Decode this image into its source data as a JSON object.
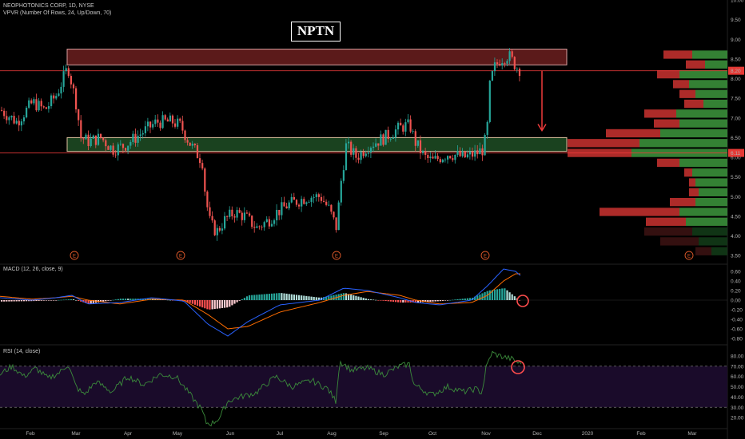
{
  "header": {
    "symbol_line": "NEOPHOTONICS CORP, 1D, NYSE",
    "vpvr_line": "VPVR (Number Of Rows, 24, Up/Down, 70)",
    "ticker": "NPTN"
  },
  "price_axis": {
    "ticks": [
      "10.00",
      "9.50",
      "9.00",
      "8.50",
      "8.00",
      "7.50",
      "7.00",
      "6.50",
      "6.00",
      "5.50",
      "5.00",
      "4.50",
      "4.00",
      "3.50"
    ],
    "current_price": "8.20",
    "support_price": "6.11"
  },
  "macd": {
    "label": "MACD (12, 26, close, 9)",
    "ticks": [
      "0.60",
      "0.40",
      "0.20",
      "0.00",
      "-0.20",
      "-0.40",
      "-0.60",
      "-0.80"
    ]
  },
  "rsi": {
    "label": "RSI (14, close)",
    "ticks": [
      "80.00",
      "70.00",
      "60.00",
      "50.00",
      "40.00",
      "30.00",
      "20.00"
    ]
  },
  "time_axis": {
    "labels": [
      "Feb",
      "Mar",
      "Apr",
      "May",
      "Jun",
      "Jul",
      "Aug",
      "Sep",
      "Oct",
      "Nov",
      "Dec",
      "2020",
      "Feb",
      "Mar"
    ]
  },
  "earnings_markers": [
    "E",
    "E",
    "E",
    "E",
    "E"
  ],
  "colors": {
    "background": "#000000",
    "up": "#26a69a",
    "down": "#ef5350",
    "resistance_zone": "#6b1e1e",
    "support_zone": "#1e4d24",
    "line_red": "#ef3b3b",
    "macd_line": "#2962ff",
    "signal_line": "#ff6d00",
    "rsi_line": "#3b8b3b",
    "rsi_band": "#1a0b2a",
    "vp_up": "#3a8f3a",
    "vp_down": "#c0302d"
  },
  "chart_data": {
    "type": "candlestick",
    "title": "NEOPHOTONICS CORP, 1D, NYSE",
    "y_range": [
      3.3,
      10.0
    ],
    "resistance_zone": [
      8.35,
      8.75
    ],
    "support_zone": [
      6.15,
      6.5
    ],
    "horizontal_lines": [
      8.2,
      6.11
    ],
    "price_path": [
      [
        0,
        7.2
      ],
      [
        20,
        6.9
      ],
      [
        40,
        7.4
      ],
      [
        55,
        7.2
      ],
      [
        70,
        7.6
      ],
      [
        84,
        8.3
      ],
      [
        95,
        7.3
      ],
      [
        100,
        6.5
      ],
      [
        110,
        6.4
      ],
      [
        125,
        6.5
      ],
      [
        140,
        6.2
      ],
      [
        155,
        6.3
      ],
      [
        175,
        6.6
      ],
      [
        195,
        6.9
      ],
      [
        215,
        6.9
      ],
      [
        225,
        6.8
      ],
      [
        235,
        6.4
      ],
      [
        245,
        6.1
      ],
      [
        252,
        5.9
      ],
      [
        256,
        5.0
      ],
      [
        262,
        4.3
      ],
      [
        270,
        4.1
      ],
      [
        280,
        4.4
      ],
      [
        292,
        4.6
      ],
      [
        305,
        4.5
      ],
      [
        320,
        4.2
      ],
      [
        335,
        4.4
      ],
      [
        345,
        4.6
      ],
      [
        360,
        4.8
      ],
      [
        385,
        5.0
      ],
      [
        400,
        5.0
      ],
      [
        410,
        4.7
      ],
      [
        420,
        4.2
      ],
      [
        425,
        5.3
      ],
      [
        432,
        6.3
      ],
      [
        445,
        6.0
      ],
      [
        460,
        6.3
      ],
      [
        480,
        6.5
      ],
      [
        495,
        6.7
      ],
      [
        505,
        6.8
      ],
      [
        512,
        6.8
      ],
      [
        518,
        6.4
      ],
      [
        530,
        6.0
      ],
      [
        540,
        5.9
      ],
      [
        560,
        6.1
      ],
      [
        580,
        6.0
      ],
      [
        595,
        6.1
      ],
      [
        603,
        6.2
      ],
      [
        608,
        6.6
      ],
      [
        612,
        7.9
      ],
      [
        618,
        8.3
      ],
      [
        625,
        8.5
      ],
      [
        635,
        8.6
      ],
      [
        645,
        8.3
      ],
      [
        652,
        8.2
      ]
    ],
    "volume_profile": [
      {
        "price": 8.6,
        "up": 0.22,
        "down": 0.18
      },
      {
        "price": 8.35,
        "up": 0.14,
        "down": 0.12
      },
      {
        "price": 8.1,
        "up": 0.3,
        "down": 0.14
      },
      {
        "price": 7.85,
        "up": 0.24,
        "down": 0.1
      },
      {
        "price": 7.6,
        "up": 0.2,
        "down": 0.1
      },
      {
        "price": 7.35,
        "up": 0.15,
        "down": 0.12
      },
      {
        "price": 7.1,
        "up": 0.32,
        "down": 0.2
      },
      {
        "price": 6.85,
        "up": 0.3,
        "down": 0.16
      },
      {
        "price": 6.6,
        "up": 0.42,
        "down": 0.34
      },
      {
        "price": 6.35,
        "up": 0.55,
        "down": 0.45
      },
      {
        "price": 6.1,
        "up": 0.6,
        "down": 0.4
      },
      {
        "price": 5.85,
        "up": 0.3,
        "down": 0.14
      },
      {
        "price": 5.6,
        "up": 0.22,
        "down": 0.05
      },
      {
        "price": 5.35,
        "up": 0.2,
        "down": 0.04
      },
      {
        "price": 5.1,
        "up": 0.18,
        "down": 0.06
      },
      {
        "price": 4.85,
        "up": 0.2,
        "down": 0.16
      },
      {
        "price": 4.6,
        "up": 0.3,
        "down": 0.5
      },
      {
        "price": 4.35,
        "up": 0.26,
        "down": 0.25
      },
      {
        "price": 4.1,
        "up": 0.22,
        "down": 0.3
      },
      {
        "price": 3.85,
        "up": 0.18,
        "down": 0.24
      },
      {
        "price": 3.6,
        "up": 0.1,
        "down": 0.1
      }
    ],
    "macd_path": [
      [
        0,
        0.05
      ],
      [
        40,
        0.0
      ],
      [
        70,
        0.05
      ],
      [
        90,
        0.1
      ],
      [
        110,
        -0.08
      ],
      [
        150,
        -0.05
      ],
      [
        190,
        0.05
      ],
      [
        230,
        -0.02
      ],
      [
        260,
        -0.5
      ],
      [
        285,
        -0.75
      ],
      [
        310,
        -0.45
      ],
      [
        350,
        -0.1
      ],
      [
        400,
        0.0
      ],
      [
        430,
        0.25
      ],
      [
        460,
        0.2
      ],
      [
        500,
        0.05
      ],
      [
        520,
        -0.05
      ],
      [
        550,
        -0.1
      ],
      [
        590,
        0.0
      ],
      [
        610,
        0.3
      ],
      [
        630,
        0.65
      ],
      [
        645,
        0.6
      ],
      [
        652,
        0.5
      ]
    ],
    "signal_path": [
      [
        0,
        0.08
      ],
      [
        40,
        0.02
      ],
      [
        70,
        0.05
      ],
      [
        90,
        0.08
      ],
      [
        110,
        0.0
      ],
      [
        150,
        -0.08
      ],
      [
        190,
        0.02
      ],
      [
        230,
        0.0
      ],
      [
        260,
        -0.3
      ],
      [
        285,
        -0.6
      ],
      [
        310,
        -0.55
      ],
      [
        350,
        -0.25
      ],
      [
        400,
        -0.05
      ],
      [
        430,
        0.1
      ],
      [
        460,
        0.18
      ],
      [
        500,
        0.1
      ],
      [
        520,
        0.0
      ],
      [
        550,
        -0.08
      ],
      [
        590,
        -0.05
      ],
      [
        610,
        0.1
      ],
      [
        630,
        0.4
      ],
      [
        645,
        0.55
      ],
      [
        652,
        0.55
      ]
    ],
    "rsi_path": [
      [
        0,
        62
      ],
      [
        15,
        70
      ],
      [
        30,
        60
      ],
      [
        45,
        68
      ],
      [
        60,
        58
      ],
      [
        75,
        64
      ],
      [
        85,
        72
      ],
      [
        95,
        50
      ],
      [
        105,
        42
      ],
      [
        120,
        55
      ],
      [
        140,
        45
      ],
      [
        160,
        60
      ],
      [
        180,
        52
      ],
      [
        200,
        62
      ],
      [
        220,
        60
      ],
      [
        235,
        45
      ],
      [
        245,
        35
      ],
      [
        252,
        28
      ],
      [
        258,
        15
      ],
      [
        265,
        14
      ],
      [
        275,
        20
      ],
      [
        285,
        36
      ],
      [
        300,
        40
      ],
      [
        320,
        44
      ],
      [
        345,
        60
      ],
      [
        365,
        50
      ],
      [
        390,
        56
      ],
      [
        410,
        48
      ],
      [
        420,
        36
      ],
      [
        425,
        75
      ],
      [
        440,
        66
      ],
      [
        460,
        68
      ],
      [
        480,
        62
      ],
      [
        500,
        70
      ],
      [
        512,
        72
      ],
      [
        518,
        52
      ],
      [
        540,
        42
      ],
      [
        560,
        50
      ],
      [
        580,
        45
      ],
      [
        595,
        48
      ],
      [
        603,
        44
      ],
      [
        608,
        68
      ],
      [
        615,
        83
      ],
      [
        625,
        80
      ],
      [
        640,
        77
      ],
      [
        652,
        72
      ]
    ],
    "rsi_band": [
      30,
      70
    ]
  }
}
